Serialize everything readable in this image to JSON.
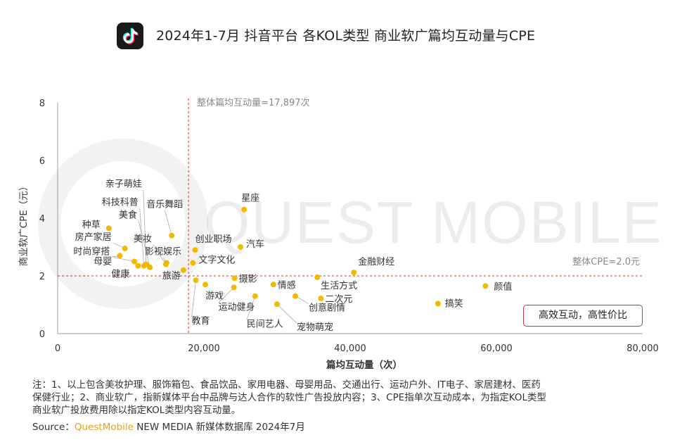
{
  "title": "2024年1-7月 抖音平台 各KOL类型 商业软广篇均互动量与CPE",
  "logo": {
    "icon": "douyin-logo-icon",
    "bg_color": "#1a1a1a"
  },
  "watermark": "QUEST MOBILE",
  "chart_data": {
    "type": "scatter",
    "xlabel": "篇均互动量（次）",
    "ylabel": "商业软广CPE（元）",
    "xlim": [
      0,
      80000
    ],
    "ylim": [
      0,
      8
    ],
    "x_ticks": [
      "0",
      "20,000",
      "40,000",
      "60,000",
      "80,000"
    ],
    "y_ticks": [
      "0",
      "2",
      "4",
      "6",
      "8"
    ],
    "grid": false,
    "point_color": "#f5b800",
    "reference_lines": {
      "vertical": {
        "x": 17897,
        "label": "整体篇均互动量=17,897次",
        "color": "#c0392b"
      },
      "horizontal": {
        "y": 2.0,
        "label": "整体CPE=2.0元",
        "color": "#c0392b"
      }
    },
    "points": [
      {
        "label": "亲子萌娃",
        "x": 12100,
        "y": 2.4
      },
      {
        "label": "科技科普",
        "x": 11800,
        "y": 2.35
      },
      {
        "label": "美食",
        "x": 12600,
        "y": 2.3
      },
      {
        "label": "种草",
        "x": 7000,
        "y": 3.65
      },
      {
        "label": "房产家居",
        "x": 9200,
        "y": 2.95
      },
      {
        "label": "时尚穿搭",
        "x": 8500,
        "y": 2.7
      },
      {
        "label": "母婴",
        "x": 10500,
        "y": 2.5
      },
      {
        "label": "健康",
        "x": 11000,
        "y": 2.35
      },
      {
        "label": "音乐舞蹈",
        "x": 15600,
        "y": 3.4
      },
      {
        "label": "美妆",
        "x": 14800,
        "y": 2.4
      },
      {
        "label": "影视娱乐",
        "x": 14900,
        "y": 2.45
      },
      {
        "label": "旅游",
        "x": 17200,
        "y": 2.2
      },
      {
        "label": "创业职场",
        "x": 18800,
        "y": 2.9
      },
      {
        "label": "文字文化",
        "x": 18500,
        "y": 2.45
      },
      {
        "label": "教育",
        "x": 18900,
        "y": 1.85
      },
      {
        "label": "游戏",
        "x": 20200,
        "y": 1.7
      },
      {
        "label": "星座",
        "x": 25500,
        "y": 4.3
      },
      {
        "label": "汽车",
        "x": 25000,
        "y": 3.0
      },
      {
        "label": "摄影",
        "x": 24200,
        "y": 1.92
      },
      {
        "label": "运动健身",
        "x": 24100,
        "y": 1.6
      },
      {
        "label": "民间艺人",
        "x": 27000,
        "y": 1.3
      },
      {
        "label": "情感",
        "x": 29500,
        "y": 1.7
      },
      {
        "label": "宠物萌宠",
        "x": 30000,
        "y": 1.02
      },
      {
        "label": "创意剧情",
        "x": 32500,
        "y": 1.3
      },
      {
        "label": "生活方式",
        "x": 35500,
        "y": 1.95
      },
      {
        "label": "二次元",
        "x": 36000,
        "y": 1.22
      },
      {
        "label": "金融财经",
        "x": 40500,
        "y": 2.12
      },
      {
        "label": "搞笑",
        "x": 52000,
        "y": 1.04
      },
      {
        "label": "颜值",
        "x": 58500,
        "y": 1.65
      }
    ],
    "annotation": "高效互动，高性价比"
  },
  "notes": [
    "注：1、以上包含美妆护理、服饰箱包、食品饮品、家用电器、母婴用品、交通出行、运动户外、IT电子、家居建材、医药",
    "保健行业；2、商业软广，指新媒体平台中品牌与达人合作的软性广告投放内容；3、CPE指单次互动成本，为指定KOL类型",
    "商业软广投放费用除以指定KOL类型内容互动量。"
  ],
  "source": {
    "prefix": "Source：",
    "brand": "QuestMobile",
    "rest": " NEW MEDIA 新媒体数据库 2024年7月"
  }
}
